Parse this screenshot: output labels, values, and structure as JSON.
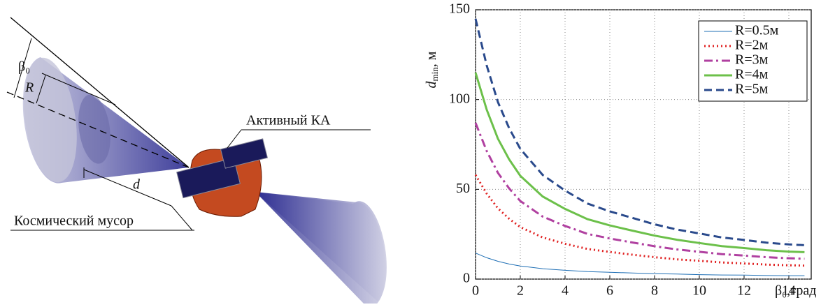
{
  "diagram": {
    "beta_label": "β₀",
    "r_label": "R",
    "d_label": "d",
    "active_label": "Активный КА",
    "debris_label": "Космический мусор"
  },
  "chart_data": {
    "type": "line",
    "ylabel_symbol": "d",
    "ylabel_sub": "min",
    "ylabel_unit": ", м",
    "xlabel": "β₀,град",
    "x": [
      0,
      0.5,
      1,
      1.5,
      2,
      3,
      4,
      5,
      6,
      7,
      8,
      9,
      10,
      11,
      12,
      13,
      14,
      14.7
    ],
    "series": [
      {
        "name": "R=0.5м",
        "color": "#1f6fb5",
        "width": 1,
        "dash": "",
        "values": [
          14.5,
          11.9,
          9.9,
          8.4,
          7.3,
          5.8,
          4.9,
          4.2,
          3.8,
          3.4,
          3.0,
          2.8,
          2.5,
          2.3,
          2.2,
          2.0,
          1.9,
          1.9
        ]
      },
      {
        "name": "R=2м",
        "color": "#e02020",
        "width": 3,
        "dash": "2 4",
        "values": [
          58,
          47.6,
          39.4,
          33.6,
          29,
          23.2,
          19.7,
          16.8,
          15.1,
          13.6,
          12.2,
          11,
          10.2,
          9.3,
          8.7,
          8.1,
          7.7,
          7.5
        ]
      },
      {
        "name": "R=3м",
        "color": "#b040a0",
        "width": 3,
        "dash": "12 5 3 5",
        "values": [
          87,
          71.3,
          59.2,
          50.5,
          43.5,
          34.8,
          29.6,
          25.2,
          22.6,
          20.4,
          18.3,
          16.5,
          15.2,
          13.9,
          13.1,
          12.2,
          11.6,
          11.3
        ]
      },
      {
        "name": "R=4м",
        "color": "#6cc04a",
        "width": 3,
        "dash": "",
        "values": [
          115,
          94.3,
          78.2,
          66.7,
          57.5,
          46,
          39.1,
          33.4,
          29.9,
          27,
          24.2,
          21.9,
          20.1,
          18.4,
          17.3,
          16.1,
          15.3,
          15
        ]
      },
      {
        "name": "R=5м",
        "color": "#2a4a8c",
        "width": 3,
        "dash": "11 6",
        "values": [
          145,
          118.9,
          98.6,
          84.1,
          72.5,
          58,
          49.3,
          42.1,
          37.7,
          34.1,
          30.5,
          27.6,
          25.4,
          23.2,
          21.8,
          20.3,
          19.3,
          18.9
        ]
      }
    ],
    "xlim": [
      0,
      15
    ],
    "ylim": [
      0,
      150
    ],
    "xticks": [
      0,
      2,
      4,
      6,
      8,
      10,
      12,
      14
    ],
    "yticks": [
      0,
      50,
      100,
      150
    ],
    "grid": true,
    "legend": "top-right"
  }
}
